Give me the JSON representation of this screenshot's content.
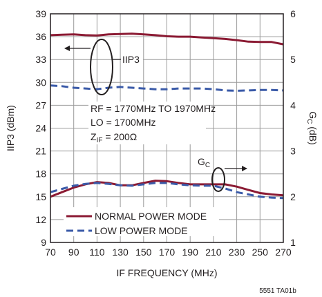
{
  "chart_data": {
    "type": "line",
    "xlabel": "IF FREQUENCY (MHz)",
    "ylabel_left": "IIP3 (dBm)",
    "ylabel_right_main": "G",
    "ylabel_right_sub": "C",
    "ylabel_right_unit": " (dB)",
    "xlim": [
      70,
      270
    ],
    "ylim_left": [
      9,
      39
    ],
    "ylim_right": [
      1,
      6
    ],
    "x_ticks": [
      70,
      90,
      110,
      130,
      150,
      170,
      190,
      210,
      230,
      250,
      270
    ],
    "y_left_ticks": [
      9,
      12,
      15,
      18,
      21,
      24,
      27,
      30,
      33,
      36,
      39
    ],
    "y_right_ticks": [
      1,
      2,
      3,
      4,
      5,
      6
    ],
    "grid": true,
    "legend": [
      {
        "label": "NORMAL POWER MODE",
        "color": "#8b1a33",
        "style": "solid"
      },
      {
        "label": "LOW POWER MODE",
        "color": "#3a5aa8",
        "style": "dashed"
      }
    ],
    "annotations": {
      "line1": "RF = 1770MHz TO 1970MHz",
      "line2": "LO = 1700MHz",
      "line3_main": "Z",
      "line3_sub": "IF",
      "line3_rest": " = 200Ω",
      "iip3_label": "IIP3",
      "gc_label_main": "G",
      "gc_label_sub": "C"
    },
    "footer": "5551 TA01b",
    "series": [
      {
        "name": "NORMAL POWER MODE",
        "metric": "IIP3",
        "axis": "left",
        "color": "#8b1a33",
        "style": "solid",
        "x": [
          70,
          80,
          90,
          100,
          110,
          120,
          130,
          140,
          150,
          160,
          170,
          180,
          190,
          200,
          210,
          220,
          230,
          240,
          250,
          260,
          270
        ],
        "y": [
          36.2,
          36.25,
          36.3,
          36.2,
          36.15,
          36.3,
          36.35,
          36.4,
          36.3,
          36.2,
          36.05,
          36.0,
          36.0,
          35.9,
          35.8,
          35.7,
          35.55,
          35.35,
          35.3,
          35.3,
          35.0
        ]
      },
      {
        "name": "LOW POWER MODE",
        "metric": "IIP3",
        "axis": "left",
        "color": "#3a5aa8",
        "style": "dashed",
        "x": [
          70,
          80,
          90,
          100,
          110,
          120,
          130,
          140,
          150,
          160,
          170,
          180,
          190,
          200,
          210,
          220,
          230,
          240,
          250,
          260,
          270
        ],
        "y": [
          29.6,
          29.5,
          29.3,
          29.2,
          29.1,
          29.3,
          29.4,
          29.3,
          29.2,
          29.1,
          29.1,
          29.2,
          29.2,
          29.2,
          29.1,
          28.95,
          28.9,
          28.95,
          29.0,
          29.0,
          28.95
        ]
      },
      {
        "name": "NORMAL POWER MODE",
        "metric": "GC",
        "axis": "right",
        "color": "#8b1a33",
        "style": "solid",
        "x": [
          70,
          80,
          90,
          100,
          110,
          120,
          130,
          140,
          150,
          160,
          170,
          180,
          190,
          200,
          210,
          220,
          230,
          240,
          250,
          260,
          270
        ],
        "y": [
          2.0,
          2.1,
          2.2,
          2.27,
          2.32,
          2.3,
          2.25,
          2.25,
          2.3,
          2.35,
          2.34,
          2.3,
          2.27,
          2.27,
          2.27,
          2.27,
          2.22,
          2.15,
          2.08,
          2.05,
          2.03
        ]
      },
      {
        "name": "LOW POWER MODE",
        "metric": "GC",
        "axis": "right",
        "color": "#3a5aa8",
        "style": "dashed",
        "x": [
          70,
          80,
          90,
          100,
          110,
          120,
          130,
          140,
          150,
          160,
          170,
          180,
          190,
          200,
          210,
          220,
          230,
          240,
          250,
          260,
          270
        ],
        "y": [
          2.1,
          2.17,
          2.24,
          2.28,
          2.3,
          2.28,
          2.25,
          2.24,
          2.27,
          2.3,
          2.3,
          2.27,
          2.25,
          2.24,
          2.24,
          2.18,
          2.1,
          2.05,
          2.0,
          1.98,
          1.97
        ]
      }
    ]
  }
}
